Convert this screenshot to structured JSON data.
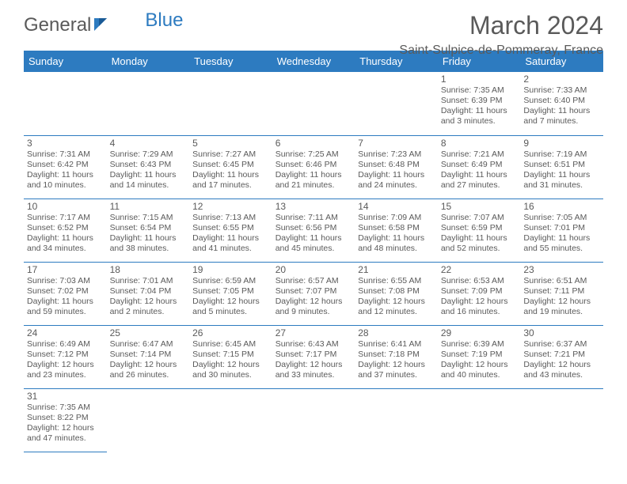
{
  "brand": {
    "part1": "General",
    "part2": "Blue"
  },
  "title": "March 2024",
  "location": "Saint-Sulpice-de-Pommeray, France",
  "colors": {
    "header_bg": "#2d7bc0",
    "header_text": "#ffffff",
    "text": "#5a5a5a",
    "border": "#2d7bc0",
    "background": "#ffffff"
  },
  "dayHeaders": [
    "Sunday",
    "Monday",
    "Tuesday",
    "Wednesday",
    "Thursday",
    "Friday",
    "Saturday"
  ],
  "weeks": [
    [
      null,
      null,
      null,
      null,
      null,
      {
        "d": "1",
        "sr": "7:35 AM",
        "ss": "6:39 PM",
        "dl": "11 hours and 3 minutes."
      },
      {
        "d": "2",
        "sr": "7:33 AM",
        "ss": "6:40 PM",
        "dl": "11 hours and 7 minutes."
      }
    ],
    [
      {
        "d": "3",
        "sr": "7:31 AM",
        "ss": "6:42 PM",
        "dl": "11 hours and 10 minutes."
      },
      {
        "d": "4",
        "sr": "7:29 AM",
        "ss": "6:43 PM",
        "dl": "11 hours and 14 minutes."
      },
      {
        "d": "5",
        "sr": "7:27 AM",
        "ss": "6:45 PM",
        "dl": "11 hours and 17 minutes."
      },
      {
        "d": "6",
        "sr": "7:25 AM",
        "ss": "6:46 PM",
        "dl": "11 hours and 21 minutes."
      },
      {
        "d": "7",
        "sr": "7:23 AM",
        "ss": "6:48 PM",
        "dl": "11 hours and 24 minutes."
      },
      {
        "d": "8",
        "sr": "7:21 AM",
        "ss": "6:49 PM",
        "dl": "11 hours and 27 minutes."
      },
      {
        "d": "9",
        "sr": "7:19 AM",
        "ss": "6:51 PM",
        "dl": "11 hours and 31 minutes."
      }
    ],
    [
      {
        "d": "10",
        "sr": "7:17 AM",
        "ss": "6:52 PM",
        "dl": "11 hours and 34 minutes."
      },
      {
        "d": "11",
        "sr": "7:15 AM",
        "ss": "6:54 PM",
        "dl": "11 hours and 38 minutes."
      },
      {
        "d": "12",
        "sr": "7:13 AM",
        "ss": "6:55 PM",
        "dl": "11 hours and 41 minutes."
      },
      {
        "d": "13",
        "sr": "7:11 AM",
        "ss": "6:56 PM",
        "dl": "11 hours and 45 minutes."
      },
      {
        "d": "14",
        "sr": "7:09 AM",
        "ss": "6:58 PM",
        "dl": "11 hours and 48 minutes."
      },
      {
        "d": "15",
        "sr": "7:07 AM",
        "ss": "6:59 PM",
        "dl": "11 hours and 52 minutes."
      },
      {
        "d": "16",
        "sr": "7:05 AM",
        "ss": "7:01 PM",
        "dl": "11 hours and 55 minutes."
      }
    ],
    [
      {
        "d": "17",
        "sr": "7:03 AM",
        "ss": "7:02 PM",
        "dl": "11 hours and 59 minutes."
      },
      {
        "d": "18",
        "sr": "7:01 AM",
        "ss": "7:04 PM",
        "dl": "12 hours and 2 minutes."
      },
      {
        "d": "19",
        "sr": "6:59 AM",
        "ss": "7:05 PM",
        "dl": "12 hours and 5 minutes."
      },
      {
        "d": "20",
        "sr": "6:57 AM",
        "ss": "7:07 PM",
        "dl": "12 hours and 9 minutes."
      },
      {
        "d": "21",
        "sr": "6:55 AM",
        "ss": "7:08 PM",
        "dl": "12 hours and 12 minutes."
      },
      {
        "d": "22",
        "sr": "6:53 AM",
        "ss": "7:09 PM",
        "dl": "12 hours and 16 minutes."
      },
      {
        "d": "23",
        "sr": "6:51 AM",
        "ss": "7:11 PM",
        "dl": "12 hours and 19 minutes."
      }
    ],
    [
      {
        "d": "24",
        "sr": "6:49 AM",
        "ss": "7:12 PM",
        "dl": "12 hours and 23 minutes."
      },
      {
        "d": "25",
        "sr": "6:47 AM",
        "ss": "7:14 PM",
        "dl": "12 hours and 26 minutes."
      },
      {
        "d": "26",
        "sr": "6:45 AM",
        "ss": "7:15 PM",
        "dl": "12 hours and 30 minutes."
      },
      {
        "d": "27",
        "sr": "6:43 AM",
        "ss": "7:17 PM",
        "dl": "12 hours and 33 minutes."
      },
      {
        "d": "28",
        "sr": "6:41 AM",
        "ss": "7:18 PM",
        "dl": "12 hours and 37 minutes."
      },
      {
        "d": "29",
        "sr": "6:39 AM",
        "ss": "7:19 PM",
        "dl": "12 hours and 40 minutes."
      },
      {
        "d": "30",
        "sr": "6:37 AM",
        "ss": "7:21 PM",
        "dl": "12 hours and 43 minutes."
      }
    ],
    [
      {
        "d": "31",
        "sr": "7:35 AM",
        "ss": "8:22 PM",
        "dl": "12 hours and 47 minutes."
      },
      null,
      null,
      null,
      null,
      null,
      null
    ]
  ],
  "labels": {
    "sunrise": "Sunrise:",
    "sunset": "Sunset:",
    "daylight": "Daylight:"
  }
}
